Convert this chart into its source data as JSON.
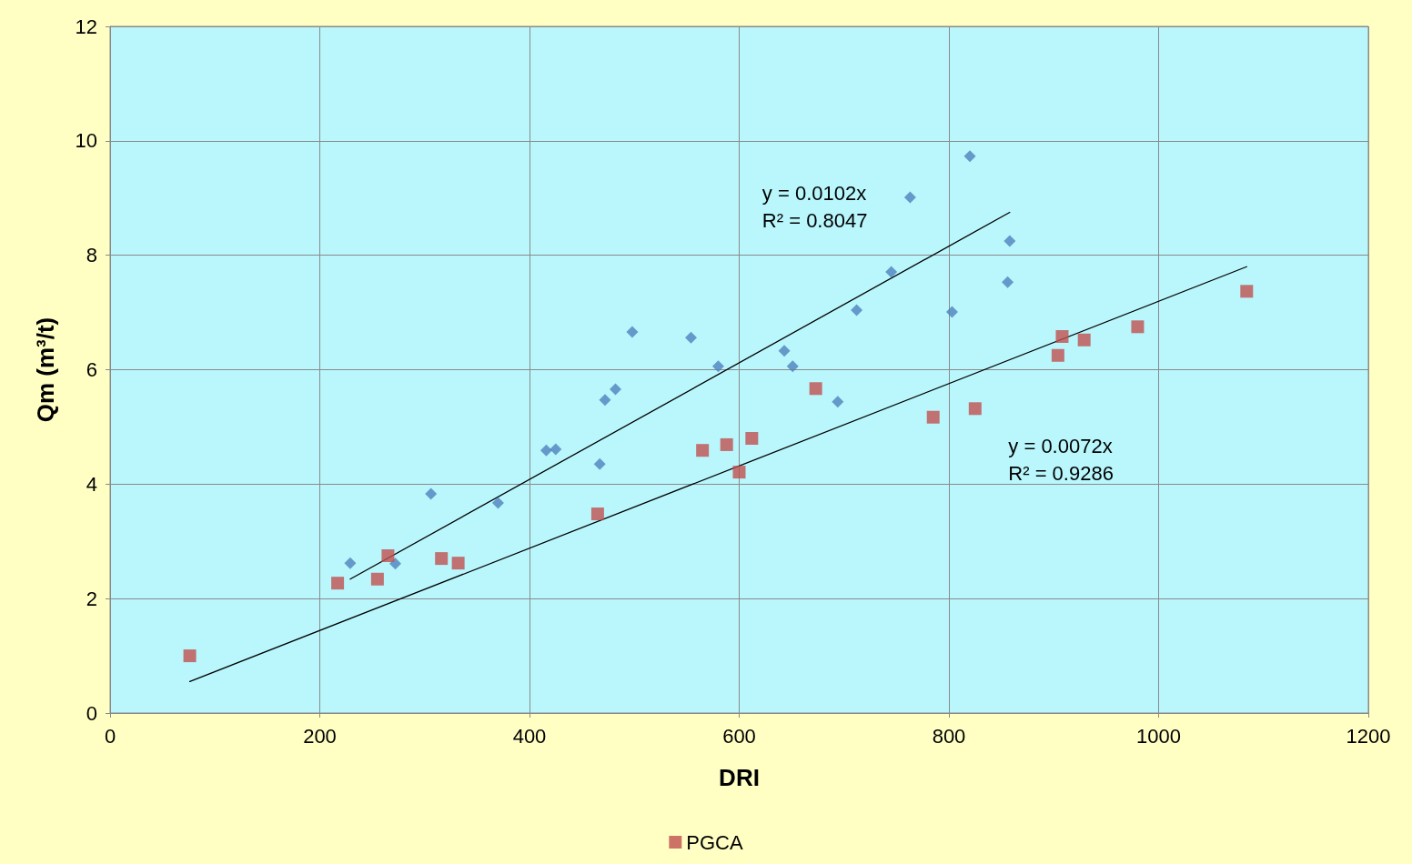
{
  "chart_data": {
    "type": "scatter",
    "xlabel": "DRI",
    "ylabel": "Qm (m³/t)",
    "xlim": [
      0,
      1200
    ],
    "xticks": [
      0,
      200,
      400,
      600,
      800,
      1000,
      1200
    ],
    "ylim": [
      0,
      12
    ],
    "yticks": [
      0,
      2,
      4,
      6,
      8,
      10,
      12
    ],
    "grid": true,
    "legend": "bottom",
    "series": [
      {
        "color": "#4f81bd",
        "marker": "diamond",
        "x": [
          229,
          272,
          306,
          370,
          416,
          425,
          467,
          472,
          482,
          498,
          554,
          580,
          643,
          651,
          694,
          712,
          745,
          763,
          803,
          820,
          856,
          858
        ],
        "values": [
          2.62,
          2.61,
          3.83,
          3.67,
          4.59,
          4.61,
          4.35,
          5.47,
          5.66,
          6.66,
          6.56,
          6.06,
          6.33,
          6.06,
          5.44,
          7.04,
          7.71,
          9.01,
          7.01,
          9.73,
          7.53,
          8.25
        ]
      },
      {
        "name": "PGCA",
        "color": "#c0504d",
        "marker": "square",
        "x": [
          76,
          217,
          255,
          265,
          316,
          332,
          465,
          565,
          588,
          600,
          612,
          673,
          785,
          825,
          904,
          908,
          929,
          980,
          1084
        ],
        "values": [
          1.0,
          2.27,
          2.34,
          2.75,
          2.7,
          2.62,
          3.48,
          4.59,
          4.69,
          4.21,
          4.8,
          5.67,
          5.17,
          5.32,
          6.25,
          6.58,
          6.52,
          6.75,
          7.37
        ]
      },
      {
        "type": "line",
        "color": "#000000",
        "marker": "none",
        "x": [
          229,
          858
        ],
        "values": [
          2.34,
          8.75
        ]
      },
      {
        "type": "line",
        "color": "#000000",
        "marker": "none",
        "x": [
          76,
          1084
        ],
        "values": [
          0.55,
          7.8
        ]
      }
    ],
    "annotations": [
      "y = 0.0102x",
      "R² = 0.8047",
      "y = 0.0072x",
      "R² = 0.9286"
    ]
  }
}
